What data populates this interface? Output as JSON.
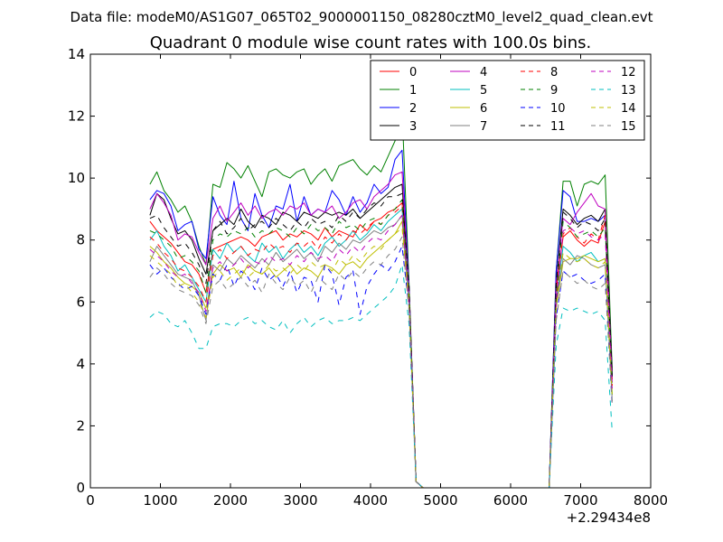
{
  "figure": {
    "suptitle": "Data file: modeM0/AS1G07_065T02_9000001150_08280cztM0_level2_quad_clean.evt"
  },
  "chart_data": {
    "type": "line",
    "title": "Quadrant 0 module wise count rates with 100.0s bins.",
    "xlabel": "",
    "ylabel": "",
    "x_offset_label": "+2.29434e8",
    "xlim": [
      0,
      8000
    ],
    "ylim": [
      0,
      14
    ],
    "xticks": [
      0,
      1000,
      2000,
      3000,
      4000,
      5000,
      6000,
      7000,
      8000
    ],
    "yticks": [
      0,
      2,
      4,
      6,
      8,
      10,
      12,
      14
    ],
    "legend_position": "top-right",
    "legend_columns": 4,
    "x": [
      850,
      950,
      1050,
      1150,
      1250,
      1350,
      1450,
      1550,
      1650,
      1750,
      1850,
      1950,
      2050,
      2150,
      2250,
      2350,
      2450,
      2550,
      2650,
      2750,
      2850,
      2950,
      3050,
      3150,
      3250,
      3350,
      3450,
      3550,
      3650,
      3750,
      3850,
      3950,
      4050,
      4150,
      4250,
      4350,
      4450,
      4550,
      4650,
      4750,
      6550,
      6650,
      6750,
      6850,
      6950,
      7050,
      7150,
      7250,
      7350,
      7450
    ],
    "series": [
      {
        "name": "0",
        "color": "#ff0000",
        "dash": "solid",
        "values": [
          8.6,
          8.3,
          8.1,
          7.9,
          7.6,
          7.3,
          7.2,
          6.9,
          6.3,
          7.7,
          7.8,
          7.9,
          8.0,
          8.1,
          8.0,
          7.8,
          8.1,
          8.2,
          8.3,
          8.0,
          8.2,
          8.1,
          8.3,
          8.2,
          8.0,
          8.4,
          8.1,
          8.3,
          8.2,
          8.1,
          8.5,
          8.3,
          8.6,
          8.7,
          8.9,
          9.0,
          9.2,
          6.5,
          0.2,
          0.0,
          0.0,
          6.4,
          8.1,
          8.3,
          8.0,
          7.8,
          8.0,
          7.9,
          8.6,
          3.5
        ]
      },
      {
        "name": "1",
        "color": "#008000",
        "dash": "solid",
        "values": [
          9.8,
          10.2,
          9.6,
          9.3,
          8.9,
          9.1,
          8.6,
          7.8,
          7.2,
          9.8,
          9.7,
          10.5,
          10.3,
          10.0,
          10.4,
          9.9,
          9.4,
          10.2,
          10.3,
          10.1,
          10.0,
          10.2,
          10.3,
          9.8,
          10.1,
          10.3,
          9.9,
          10.4,
          10.5,
          10.6,
          10.3,
          10.1,
          10.4,
          10.2,
          10.7,
          11.2,
          12.2,
          6.6,
          0.2,
          0.0,
          0.0,
          7.0,
          9.9,
          9.9,
          9.1,
          9.8,
          9.9,
          9.8,
          10.1,
          3.8
        ]
      },
      {
        "name": "2",
        "color": "#0000ff",
        "dash": "solid",
        "values": [
          9.3,
          9.6,
          9.5,
          9.1,
          8.3,
          8.5,
          8.6,
          7.7,
          7.4,
          9.4,
          8.8,
          8.5,
          9.9,
          8.7,
          8.3,
          9.5,
          8.8,
          8.4,
          9.1,
          9.0,
          9.8,
          8.6,
          9.4,
          8.8,
          9.0,
          8.9,
          9.6,
          9.3,
          8.8,
          9.4,
          8.9,
          9.2,
          9.8,
          9.5,
          9.7,
          10.6,
          10.9,
          6.5,
          0.2,
          0.0,
          0.0,
          7.0,
          9.6,
          9.4,
          8.6,
          8.6,
          8.7,
          8.6,
          8.8,
          3.6
        ]
      },
      {
        "name": "3",
        "color": "#000000",
        "dash": "solid",
        "values": [
          8.8,
          9.5,
          9.3,
          8.7,
          8.2,
          8.3,
          8.0,
          7.4,
          6.9,
          8.3,
          8.5,
          8.7,
          8.5,
          9.0,
          8.6,
          8.4,
          8.8,
          8.7,
          8.5,
          8.9,
          8.8,
          8.6,
          8.9,
          8.8,
          8.7,
          8.9,
          8.8,
          8.9,
          8.8,
          9.0,
          8.7,
          8.9,
          9.1,
          9.3,
          9.5,
          9.7,
          9.8,
          6.3,
          0.2,
          0.0,
          0.0,
          6.6,
          9.0,
          8.8,
          8.5,
          8.7,
          8.8,
          8.6,
          9.0,
          3.7
        ]
      },
      {
        "name": "4",
        "color": "#bf00bf",
        "dash": "solid",
        "values": [
          9.0,
          9.5,
          9.2,
          8.8,
          8.0,
          8.2,
          8.1,
          7.6,
          7.2,
          8.7,
          9.1,
          8.6,
          8.9,
          9.2,
          8.8,
          9.1,
          8.7,
          8.9,
          9.0,
          8.8,
          9.1,
          9.0,
          9.2,
          8.8,
          9.0,
          8.9,
          9.1,
          8.7,
          8.9,
          9.2,
          9.3,
          9.0,
          9.4,
          9.6,
          9.8,
          10.1,
          10.2,
          6.4,
          0.2,
          0.0,
          0.0,
          6.6,
          8.7,
          8.5,
          8.9,
          9.2,
          9.5,
          9.1,
          9.0,
          3.4
        ]
      },
      {
        "name": "5",
        "color": "#00bfbf",
        "dash": "solid",
        "values": [
          8.0,
          8.3,
          7.8,
          7.5,
          7.0,
          7.2,
          6.8,
          6.4,
          6.0,
          7.7,
          7.4,
          7.9,
          7.6,
          7.8,
          7.5,
          7.3,
          7.9,
          7.6,
          7.8,
          7.4,
          7.7,
          7.9,
          7.6,
          7.8,
          7.5,
          7.9,
          8.1,
          7.8,
          8.0,
          8.3,
          8.0,
          8.2,
          8.5,
          8.3,
          8.6,
          8.8,
          9.0,
          6.2,
          0.2,
          0.0,
          0.0,
          6.0,
          7.8,
          7.6,
          7.3,
          7.5,
          7.6,
          7.3,
          7.4,
          3.0
        ]
      },
      {
        "name": "6",
        "color": "#bfbf00",
        "dash": "solid",
        "values": [
          7.8,
          7.6,
          7.3,
          7.1,
          6.8,
          6.6,
          6.5,
          6.3,
          5.8,
          6.9,
          7.2,
          7.0,
          7.1,
          6.8,
          7.2,
          7.0,
          6.9,
          7.1,
          6.8,
          7.0,
          7.2,
          6.9,
          7.1,
          7.0,
          6.8,
          7.2,
          7.1,
          6.9,
          7.2,
          7.3,
          7.1,
          7.4,
          7.6,
          7.8,
          8.0,
          8.2,
          8.6,
          6.0,
          0.2,
          0.0,
          0.0,
          5.8,
          7.3,
          7.4,
          7.4,
          7.5,
          7.4,
          7.3,
          7.4,
          3.0
        ]
      },
      {
        "name": "7",
        "color": "#808080",
        "dash": "solid",
        "values": [
          7.3,
          7.8,
          7.5,
          7.2,
          6.9,
          6.8,
          6.7,
          6.2,
          5.4,
          7.2,
          7.0,
          7.4,
          7.2,
          7.5,
          7.3,
          7.1,
          7.4,
          7.2,
          7.6,
          7.3,
          7.5,
          7.7,
          7.4,
          7.6,
          7.3,
          7.8,
          7.6,
          7.9,
          7.7,
          8.0,
          7.9,
          8.1,
          8.3,
          8.2,
          8.4,
          8.5,
          8.8,
          6.0,
          0.2,
          0.0,
          0.0,
          5.9,
          7.4,
          7.2,
          7.5,
          7.4,
          7.2,
          7.1,
          7.2,
          2.8
        ]
      },
      {
        "name": "8",
        "color": "#ff0000",
        "dash": "dashed",
        "values": [
          8.1,
          7.9,
          7.6,
          7.4,
          7.1,
          7.0,
          6.8,
          6.5,
          6.0,
          7.5,
          7.7,
          7.4,
          7.6,
          7.8,
          7.5,
          7.7,
          7.6,
          7.9,
          7.7,
          7.8,
          7.6,
          7.9,
          7.8,
          8.0,
          7.7,
          8.1,
          7.9,
          8.2,
          8.0,
          8.3,
          8.2,
          8.4,
          8.6,
          8.5,
          8.8,
          8.9,
          9.1,
          6.3,
          0.2,
          0.0,
          0.0,
          6.1,
          8.2,
          8.4,
          8.1,
          7.9,
          8.2,
          8.0,
          8.8,
          3.3
        ]
      },
      {
        "name": "9",
        "color": "#008000",
        "dash": "dashed",
        "values": [
          8.3,
          8.2,
          8.0,
          7.8,
          7.4,
          7.5,
          7.3,
          7.0,
          6.3,
          8.0,
          8.2,
          8.1,
          8.3,
          8.2,
          8.4,
          8.1,
          8.3,
          8.2,
          8.4,
          8.3,
          8.1,
          8.4,
          8.2,
          8.5,
          8.3,
          8.4,
          8.2,
          8.6,
          8.4,
          8.5,
          8.3,
          8.6,
          8.7,
          8.5,
          8.8,
          9.0,
          9.3,
          6.4,
          0.2,
          0.0,
          0.0,
          6.3,
          8.6,
          8.4,
          8.1,
          8.2,
          8.3,
          8.1,
          8.4,
          3.4
        ]
      },
      {
        "name": "10",
        "color": "#0000ff",
        "dash": "dashed",
        "values": [
          7.2,
          6.9,
          7.1,
          6.8,
          6.6,
          6.4,
          6.5,
          6.2,
          5.6,
          6.9,
          6.7,
          7.2,
          6.5,
          7.0,
          6.8,
          6.4,
          7.1,
          6.7,
          6.9,
          6.5,
          7.0,
          6.3,
          6.8,
          6.7,
          6.0,
          7.2,
          6.9,
          5.9,
          6.8,
          7.0,
          5.6,
          6.5,
          6.9,
          7.2,
          7.0,
          7.3,
          7.8,
          5.8,
          0.2,
          0.0,
          0.0,
          5.5,
          7.0,
          6.8,
          6.9,
          6.7,
          6.6,
          6.7,
          6.9,
          2.6
        ]
      },
      {
        "name": "11",
        "color": "#000000",
        "dash": "dashed",
        "values": [
          8.7,
          8.8,
          8.4,
          8.1,
          7.8,
          7.9,
          7.6,
          7.2,
          6.6,
          8.3,
          8.6,
          8.2,
          8.4,
          8.7,
          8.3,
          8.5,
          8.6,
          8.4,
          8.7,
          8.5,
          8.3,
          8.6,
          8.4,
          8.7,
          8.5,
          8.6,
          8.4,
          8.8,
          8.6,
          8.9,
          8.7,
          9.0,
          9.2,
          9.1,
          9.4,
          9.4,
          9.5,
          6.5,
          0.2,
          0.0,
          0.0,
          6.6,
          8.9,
          8.7,
          8.4,
          8.6,
          8.5,
          8.3,
          8.7,
          3.6
        ]
      },
      {
        "name": "12",
        "color": "#bf00bf",
        "dash": "dashed",
        "values": [
          7.7,
          7.5,
          7.3,
          7.0,
          6.8,
          6.9,
          6.6,
          6.3,
          5.7,
          7.1,
          7.3,
          7.0,
          7.2,
          7.4,
          7.1,
          7.3,
          7.2,
          7.5,
          7.3,
          7.4,
          7.2,
          7.5,
          7.3,
          7.6,
          7.4,
          7.5,
          7.3,
          7.7,
          7.5,
          7.8,
          7.6,
          7.9,
          8.1,
          8.0,
          8.3,
          8.5,
          8.8,
          6.1,
          0.2,
          0.0,
          0.0,
          6.0,
          8.3,
          8.4,
          8.2,
          8.3,
          8.1,
          8.0,
          8.2,
          3.2
        ]
      },
      {
        "name": "13",
        "color": "#00bfbf",
        "dash": "dashed",
        "values": [
          5.5,
          5.7,
          5.6,
          5.3,
          5.2,
          5.4,
          5.0,
          4.5,
          4.5,
          5.2,
          5.3,
          5.3,
          5.2,
          5.4,
          5.5,
          5.3,
          5.4,
          5.2,
          5.1,
          5.4,
          5.0,
          5.3,
          5.5,
          5.2,
          5.4,
          5.5,
          5.3,
          5.4,
          5.4,
          5.5,
          5.4,
          5.6,
          5.8,
          6.0,
          6.2,
          6.5,
          7.2,
          5.3,
          0.2,
          0.0,
          0.0,
          4.6,
          5.8,
          5.7,
          5.8,
          5.7,
          5.6,
          5.7,
          5.4,
          1.8
        ]
      },
      {
        "name": "14",
        "color": "#bfbf00",
        "dash": "dashed",
        "values": [
          7.5,
          7.3,
          7.1,
          6.9,
          6.5,
          6.6,
          6.3,
          6.0,
          5.5,
          6.8,
          7.0,
          6.7,
          6.9,
          7.1,
          6.8,
          7.0,
          6.9,
          7.2,
          7.0,
          7.1,
          6.9,
          7.2,
          7.0,
          7.3,
          7.1,
          7.2,
          7.0,
          7.4,
          7.2,
          7.5,
          7.3,
          7.6,
          7.8,
          7.7,
          8.0,
          8.2,
          8.4,
          5.9,
          0.2,
          0.0,
          0.0,
          5.8,
          7.6,
          7.4,
          7.3,
          7.4,
          7.2,
          7.1,
          7.3,
          2.9
        ]
      },
      {
        "name": "15",
        "color": "#808080",
        "dash": "dashed",
        "values": [
          6.8,
          7.1,
          6.9,
          6.6,
          6.4,
          6.3,
          6.2,
          5.9,
          5.3,
          6.5,
          6.7,
          6.4,
          6.6,
          6.8,
          6.5,
          6.7,
          6.3,
          6.9,
          6.6,
          6.4,
          6.8,
          6.5,
          6.7,
          6.3,
          6.8,
          6.6,
          6.4,
          6.9,
          6.7,
          7.0,
          6.8,
          7.1,
          7.3,
          7.2,
          7.5,
          7.7,
          8.1,
          5.7,
          0.2,
          0.0,
          0.0,
          5.4,
          7.0,
          6.8,
          6.6,
          6.7,
          6.5,
          6.4,
          6.6,
          2.7
        ]
      }
    ]
  }
}
